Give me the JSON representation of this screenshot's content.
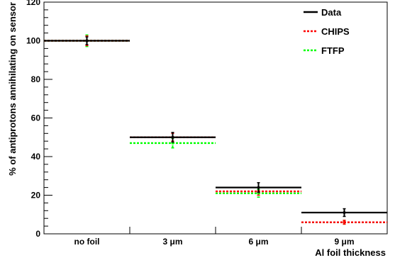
{
  "chart_data": {
    "type": "scatter",
    "title": "",
    "xlabel": "Al foil thickness",
    "ylabel": "% of antiprotons annihilating on sensor",
    "ylim": [
      0,
      120
    ],
    "yticks": [
      "0",
      "20",
      "40",
      "60",
      "80",
      "100",
      "120"
    ],
    "categories": [
      "no foil",
      "3 μm",
      "6 μm",
      "9 μm"
    ],
    "grid": false,
    "legend_position": "top-right",
    "series": [
      {
        "name": "Data",
        "color": "#000000",
        "style": "solid",
        "values": [
          100,
          50,
          24,
          11
        ],
        "errors": [
          2,
          2.5,
          2.5,
          2
        ]
      },
      {
        "name": "CHIPS",
        "color": "#ff0000",
        "style": "dotted",
        "values": [
          100,
          50,
          22,
          6
        ],
        "errors": [
          2.5,
          2,
          2,
          1
        ]
      },
      {
        "name": "FTFP",
        "color": "#00ff00",
        "style": "dotted",
        "values": [
          100,
          47,
          21,
          6
        ],
        "errors": [
          3,
          2.5,
          2,
          1
        ]
      }
    ]
  }
}
